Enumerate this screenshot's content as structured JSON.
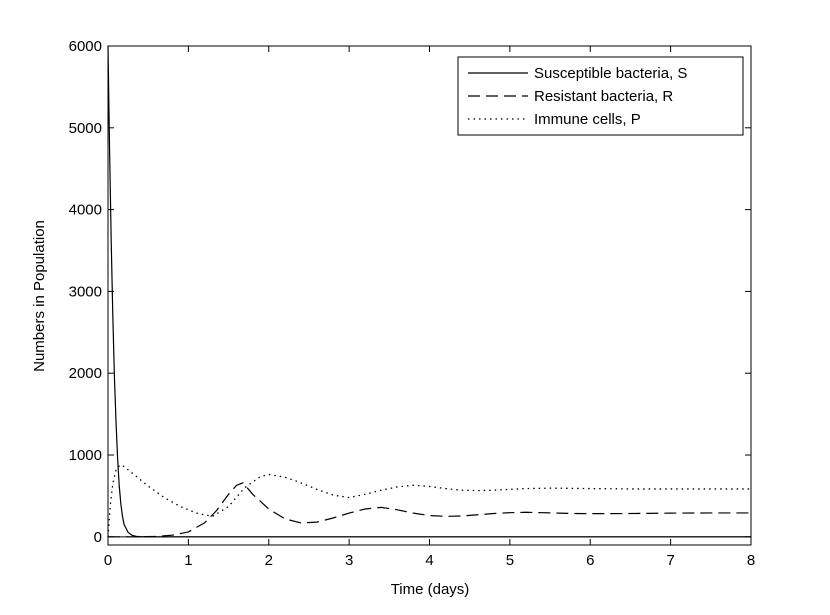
{
  "chart_data": {
    "type": "line",
    "title": "",
    "xlabel": "Time (days)",
    "ylabel": "Numbers in Population",
    "xlim": [
      0,
      8
    ],
    "ylim": [
      -100,
      6000
    ],
    "xticks": [
      0,
      1,
      2,
      3,
      4,
      5,
      6,
      7,
      8
    ],
    "yticks": [
      0,
      1000,
      2000,
      3000,
      4000,
      5000,
      6000
    ],
    "grid": false,
    "legend_position": "top-right",
    "series": [
      {
        "name": "Susceptible bacteria, S",
        "style": "solid",
        "color": "#000000",
        "points": [
          [
            0,
            6000
          ],
          [
            0.02,
            4700
          ],
          [
            0.04,
            3600
          ],
          [
            0.06,
            2700
          ],
          [
            0.08,
            1950
          ],
          [
            0.1,
            1400
          ],
          [
            0.12,
            950
          ],
          [
            0.14,
            620
          ],
          [
            0.16,
            400
          ],
          [
            0.18,
            250
          ],
          [
            0.2,
            150
          ],
          [
            0.25,
            55
          ],
          [
            0.3,
            18
          ],
          [
            0.35,
            6
          ],
          [
            0.4,
            2
          ],
          [
            0.5,
            0
          ],
          [
            1,
            0
          ],
          [
            2,
            0
          ],
          [
            3,
            0
          ],
          [
            4,
            0
          ],
          [
            5,
            0
          ],
          [
            6,
            0
          ],
          [
            7,
            0
          ],
          [
            8,
            0
          ]
        ]
      },
      {
        "name": "Resistant bacteria, R",
        "style": "dashed",
        "color": "#000000",
        "points": [
          [
            0,
            0
          ],
          [
            0.3,
            0
          ],
          [
            0.6,
            5
          ],
          [
            0.8,
            20
          ],
          [
            1.0,
            60
          ],
          [
            1.2,
            170
          ],
          [
            1.35,
            320
          ],
          [
            1.5,
            520
          ],
          [
            1.6,
            630
          ],
          [
            1.68,
            660
          ],
          [
            1.8,
            520
          ],
          [
            2.0,
            340
          ],
          [
            2.2,
            220
          ],
          [
            2.4,
            170
          ],
          [
            2.6,
            180
          ],
          [
            2.8,
            230
          ],
          [
            3.0,
            290
          ],
          [
            3.2,
            340
          ],
          [
            3.4,
            360
          ],
          [
            3.6,
            330
          ],
          [
            3.8,
            290
          ],
          [
            4.0,
            260
          ],
          [
            4.2,
            250
          ],
          [
            4.4,
            255
          ],
          [
            4.6,
            270
          ],
          [
            4.8,
            285
          ],
          [
            5.0,
            295
          ],
          [
            5.2,
            300
          ],
          [
            5.4,
            295
          ],
          [
            5.6,
            290
          ],
          [
            5.8,
            285
          ],
          [
            6.0,
            283
          ],
          [
            6.5,
            285
          ],
          [
            7.0,
            290
          ],
          [
            7.5,
            292
          ],
          [
            8.0,
            292
          ]
        ]
      },
      {
        "name": "Immune cells, P",
        "style": "dotted",
        "color": "#000000",
        "points": [
          [
            0,
            0
          ],
          [
            0.03,
            400
          ],
          [
            0.06,
            650
          ],
          [
            0.1,
            820
          ],
          [
            0.15,
            880
          ],
          [
            0.2,
            860
          ],
          [
            0.3,
            780
          ],
          [
            0.5,
            620
          ],
          [
            0.7,
            480
          ],
          [
            0.9,
            370
          ],
          [
            1.1,
            290
          ],
          [
            1.3,
            250
          ],
          [
            1.5,
            370
          ],
          [
            1.7,
            600
          ],
          [
            1.9,
            740
          ],
          [
            2.0,
            760
          ],
          [
            2.2,
            730
          ],
          [
            2.4,
            660
          ],
          [
            2.6,
            580
          ],
          [
            2.8,
            510
          ],
          [
            3.0,
            480
          ],
          [
            3.2,
            520
          ],
          [
            3.4,
            570
          ],
          [
            3.6,
            610
          ],
          [
            3.8,
            630
          ],
          [
            4.0,
            615
          ],
          [
            4.2,
            590
          ],
          [
            4.4,
            570
          ],
          [
            4.6,
            565
          ],
          [
            4.8,
            570
          ],
          [
            5.0,
            580
          ],
          [
            5.2,
            590
          ],
          [
            5.5,
            595
          ],
          [
            6.0,
            590
          ],
          [
            6.5,
            585
          ],
          [
            7.0,
            585
          ],
          [
            7.5,
            585
          ],
          [
            8.0,
            585
          ]
        ]
      }
    ]
  }
}
